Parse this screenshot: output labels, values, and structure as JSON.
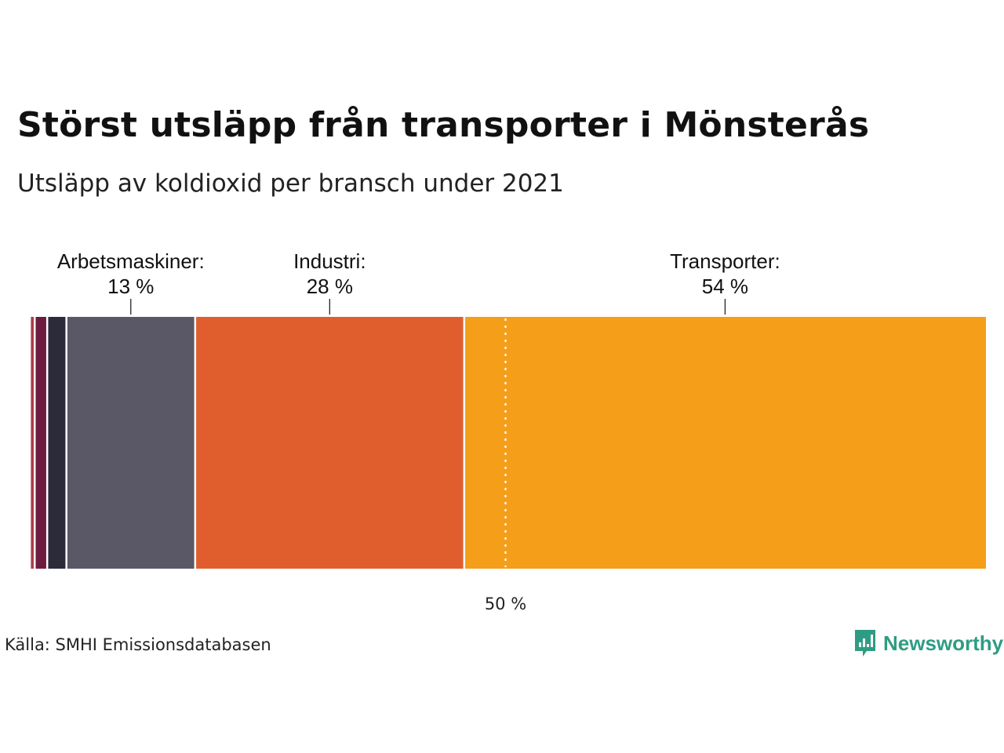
{
  "title": "Störst utsläpp från transporter i Mönsterås",
  "subtitle": "Utsläpp av koldioxid per bransch under 2021",
  "source": "Källa: SMHI Emissionsdatabasen",
  "brand": {
    "name": "Newsworthy",
    "color": "#2e9c84"
  },
  "chart_data": {
    "type": "stacked-bar",
    "orientation": "horizontal",
    "unit": "%",
    "total": 100,
    "segments": [
      {
        "name": "",
        "value": 0.5,
        "color": "#ffffff"
      },
      {
        "name": "",
        "value": 0.5,
        "color": "#b03a48"
      },
      {
        "name": "",
        "value": 1.3,
        "color": "#6d1c3f"
      },
      {
        "name": "",
        "value": 2.0,
        "color": "#2b2b3a"
      },
      {
        "name": "Arbetsmaskiner",
        "value": 13.4,
        "color": "#5a5866",
        "label": "Arbetsmaskiner:",
        "pct_label": "13 %"
      },
      {
        "name": "Industri",
        "value": 28.0,
        "color": "#e05e2e",
        "label": "Industri:",
        "pct_label": "28 %"
      },
      {
        "name": "Transporter",
        "value": 54.3,
        "color": "#f59e1a",
        "label": "Transporter:",
        "pct_label": "54 %"
      }
    ],
    "reference_line": {
      "value": 50,
      "label": "50 %"
    }
  }
}
